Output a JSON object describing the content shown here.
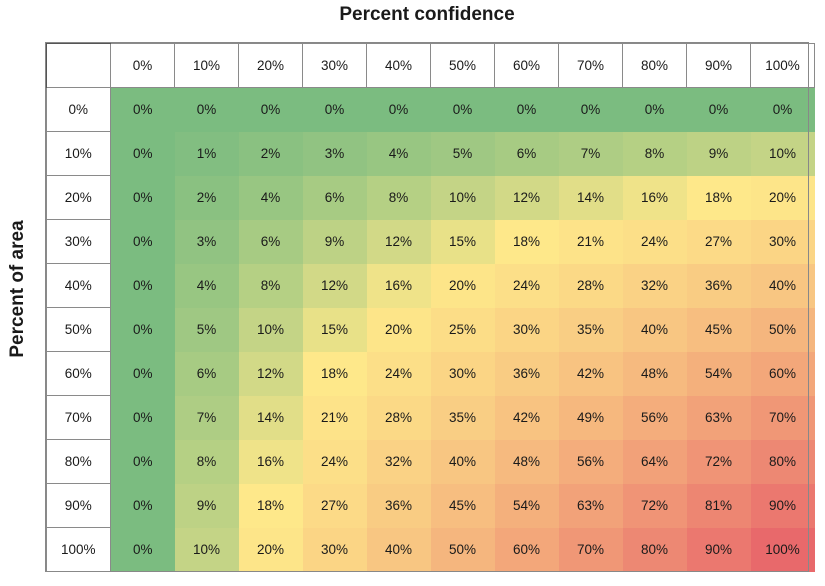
{
  "chart_data": {
    "type": "heatmap",
    "title": "Percent confidence",
    "xlabel": "Percent confidence",
    "ylabel": "Percent of area",
    "x_categories": [
      "0%",
      "10%",
      "20%",
      "30%",
      "40%",
      "50%",
      "60%",
      "70%",
      "80%",
      "90%",
      "100%"
    ],
    "y_categories": [
      "0%",
      "10%",
      "20%",
      "30%",
      "40%",
      "50%",
      "60%",
      "70%",
      "80%",
      "90%",
      "100%"
    ],
    "values": [
      [
        0,
        0,
        0,
        0,
        0,
        0,
        0,
        0,
        0,
        0,
        0
      ],
      [
        0,
        1,
        2,
        3,
        4,
        5,
        6,
        7,
        8,
        9,
        10
      ],
      [
        0,
        2,
        4,
        6,
        8,
        10,
        12,
        14,
        16,
        18,
        20
      ],
      [
        0,
        3,
        6,
        9,
        12,
        15,
        18,
        21,
        24,
        27,
        30
      ],
      [
        0,
        4,
        8,
        12,
        16,
        20,
        24,
        28,
        32,
        36,
        40
      ],
      [
        0,
        5,
        10,
        15,
        20,
        25,
        30,
        35,
        40,
        45,
        50
      ],
      [
        0,
        6,
        12,
        18,
        24,
        30,
        36,
        42,
        48,
        54,
        60
      ],
      [
        0,
        7,
        14,
        21,
        28,
        35,
        42,
        49,
        56,
        63,
        70
      ],
      [
        0,
        8,
        16,
        24,
        32,
        40,
        48,
        56,
        64,
        72,
        80
      ],
      [
        0,
        9,
        18,
        27,
        36,
        45,
        54,
        63,
        72,
        81,
        90
      ],
      [
        0,
        10,
        20,
        30,
        40,
        50,
        60,
        70,
        80,
        90,
        100
      ]
    ],
    "value_suffix": "%",
    "color_scale": {
      "min_color": "#7BBC80",
      "mid_color": "#FEE88A",
      "max_color": "#E8696B",
      "min_value": 0,
      "mid_value": 18,
      "max_value": 100
    },
    "grid": true,
    "legend": "none"
  }
}
